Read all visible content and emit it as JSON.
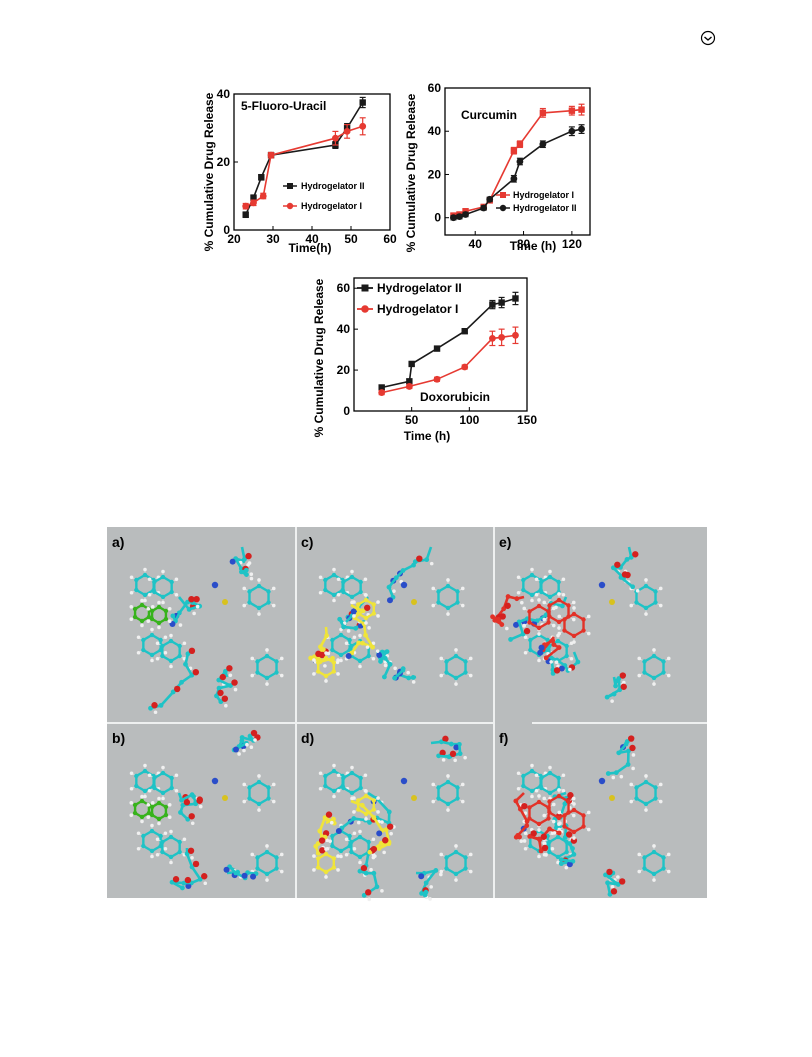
{
  "page": {
    "corner_icon": "circle-arrow-icon"
  },
  "colors": {
    "black_series": "#1a1a1a",
    "red_series": "#e63a32",
    "panel_bg": "#b9bcbd",
    "carbon": "#1fc3c6",
    "hydrogen": "#f0f0f0",
    "oxygen": "#d4211f",
    "nitrogen": "#2a4dc9",
    "sulfur": "#d8c21e",
    "drug_5fu": "#37b31c",
    "drug_curcumin": "#efe43a",
    "drug_doxorubicin": "#e23228"
  },
  "chart_data": [
    {
      "id": "fu",
      "type": "line",
      "title": "5-Fluoro-Uracil",
      "xlabel": "Time(h)",
      "ylabel": "% Cumulative Drug Release",
      "xlim": [
        20,
        60
      ],
      "ylim": [
        0,
        40
      ],
      "xticks": [
        20,
        30,
        40,
        50,
        60
      ],
      "yticks": [
        0,
        20,
        40
      ],
      "legend": "center-right",
      "series": [
        {
          "name": "Hydrogelator II",
          "color": "#1a1a1a",
          "marker": "square",
          "x": [
            23,
            25,
            27,
            29.5,
            46,
            49,
            53
          ],
          "y": [
            4.5,
            9.5,
            15.5,
            22,
            25,
            30,
            37.5
          ],
          "err": [
            0.8,
            0.8,
            0.8,
            0.8,
            1,
            1.3,
            1.5
          ]
        },
        {
          "name": "Hydrogelator I",
          "color": "#e63a32",
          "marker": "circle",
          "x": [
            23,
            25,
            27.5,
            29.5,
            46,
            49,
            53
          ],
          "y": [
            7,
            8,
            10,
            22,
            27,
            29,
            30.5
          ],
          "err": [
            0.8,
            0.8,
            0.8,
            0.8,
            2,
            2,
            2.5
          ]
        }
      ]
    },
    {
      "id": "cur",
      "type": "line",
      "title": "Curcumin",
      "xlabel": "Time (h)",
      "ylabel": "% Cumulative Drug Release",
      "xlim": [
        15,
        135
      ],
      "ylim": [
        -8,
        60
      ],
      "xticks": [
        40,
        80,
        120
      ],
      "yticks": [
        0,
        20,
        40,
        60
      ],
      "legend": "center-right",
      "series": [
        {
          "name": "Hydrogelator I",
          "color": "#e63a32",
          "marker": "square",
          "x": [
            22,
            27,
            32,
            47,
            52,
            72,
            77,
            96,
            120,
            128
          ],
          "y": [
            1,
            1.5,
            3,
            5,
            8,
            31,
            34,
            48.5,
            49.5,
            50
          ],
          "err": [
            1,
            1,
            1,
            1,
            1,
            1.5,
            1.5,
            2,
            2,
            2.5
          ]
        },
        {
          "name": "Hydrogelator II",
          "color": "#1a1a1a",
          "marker": "circle",
          "x": [
            22,
            27,
            32,
            47,
            52,
            72,
            77,
            96,
            120,
            128
          ],
          "y": [
            0,
            0.5,
            1.5,
            4.5,
            8.5,
            18,
            26,
            34,
            40,
            41
          ],
          "err": [
            1,
            1,
            1,
            1,
            1,
            1.5,
            1.5,
            1.5,
            2,
            2
          ]
        }
      ]
    },
    {
      "id": "dox",
      "type": "line",
      "title": "Doxorubicin",
      "xlabel": "Time (h)",
      "ylabel": "% Cumulative Drug Release",
      "xlim": [
        0,
        150
      ],
      "ylim": [
        0,
        65
      ],
      "xticks": [
        50,
        100,
        150
      ],
      "yticks": [
        0,
        20,
        40,
        60
      ],
      "legend": "top-left",
      "series": [
        {
          "name": "Hydrogelator II",
          "color": "#1a1a1a",
          "marker": "square",
          "x": [
            24,
            48,
            50,
            72,
            96,
            120,
            128,
            140
          ],
          "y": [
            11.5,
            14.5,
            23,
            30.5,
            39,
            52,
            53,
            55
          ],
          "err": [
            1,
            1,
            1,
            1,
            1,
            2,
            2.5,
            3
          ]
        },
        {
          "name": "Hydrogelator I",
          "color": "#e63a32",
          "marker": "circle",
          "x": [
            24,
            48,
            72,
            96,
            120,
            128,
            140
          ],
          "y": [
            9,
            12,
            15.5,
            21.5,
            35.5,
            36,
            37
          ],
          "err": [
            1,
            1,
            1,
            1,
            3.5,
            4,
            4
          ]
        }
      ]
    }
  ],
  "figure": {
    "panels": [
      {
        "id": "a",
        "label": "a)",
        "drug": "drug_5fu"
      },
      {
        "id": "c",
        "label": "c)",
        "drug": "drug_curcumin"
      },
      {
        "id": "e",
        "label": "e)",
        "drug": "drug_doxorubicin"
      },
      {
        "id": "b",
        "label": "b)",
        "drug": "drug_5fu"
      },
      {
        "id": "d",
        "label": "d)",
        "drug": "drug_curcumin"
      },
      {
        "id": "f",
        "label": "f)",
        "drug": "drug_doxorubicin"
      }
    ]
  }
}
